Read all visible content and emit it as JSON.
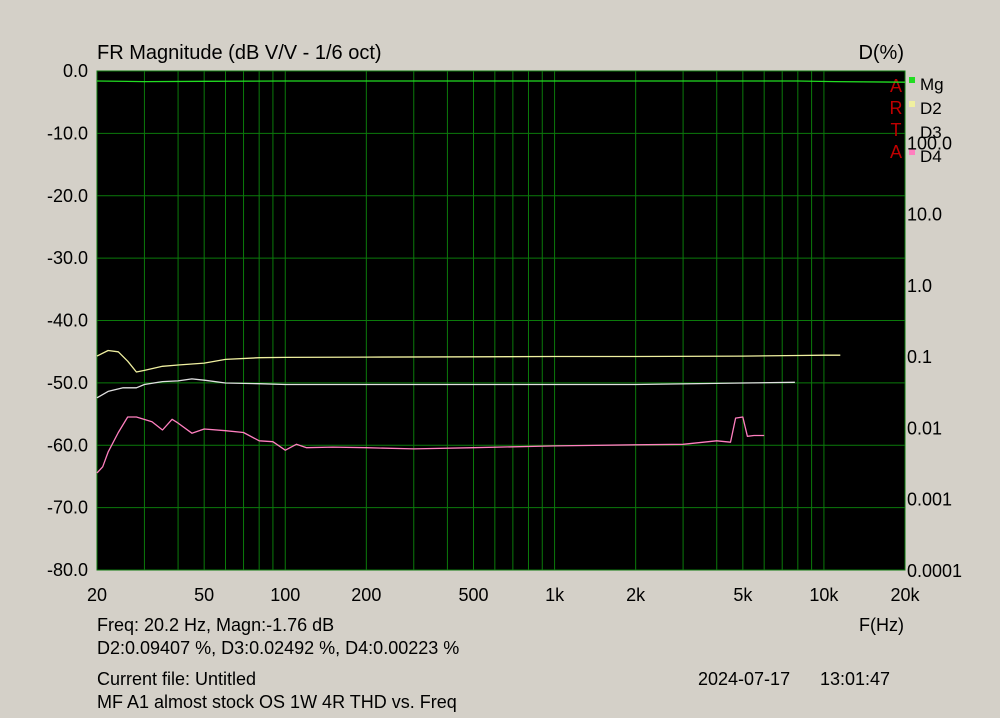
{
  "chart_data": {
    "type": "line",
    "title": "FR Magnitude (dB V/V - 1/6 oct)",
    "right_axis_title": "D(%)",
    "xlabel": "F(Hz)",
    "x_scale": "log",
    "xlim": [
      20,
      20000
    ],
    "ylim_left": [
      -80,
      0
    ],
    "ylim_right_percent": [
      0.0001,
      1000
    ],
    "y_right_scale": "log",
    "grid": true,
    "legend_placement": "top-right",
    "x_ticks": [
      {
        "value": 20,
        "label": "20"
      },
      {
        "value": 50,
        "label": "50"
      },
      {
        "value": 100,
        "label": "100"
      },
      {
        "value": 200,
        "label": "200"
      },
      {
        "value": 500,
        "label": "500"
      },
      {
        "value": 1000,
        "label": "1k"
      },
      {
        "value": 2000,
        "label": "2k"
      },
      {
        "value": 5000,
        "label": "5k"
      },
      {
        "value": 10000,
        "label": "10k"
      },
      {
        "value": 20000,
        "label": "20k"
      }
    ],
    "y_left_ticks": [
      {
        "value": 0,
        "label": "0.0"
      },
      {
        "value": -10,
        "label": "-10.0"
      },
      {
        "value": -20,
        "label": "-20.0"
      },
      {
        "value": -30,
        "label": "-30.0"
      },
      {
        "value": -40,
        "label": "-40.0"
      },
      {
        "value": -50,
        "label": "-50.0"
      },
      {
        "value": -60,
        "label": "-60.0"
      },
      {
        "value": -70,
        "label": "-70.0"
      },
      {
        "value": -80,
        "label": "-80.0"
      }
    ],
    "y_right_ticks": [
      {
        "value": 100,
        "label": "100.0"
      },
      {
        "value": 10,
        "label": "10.0"
      },
      {
        "value": 1,
        "label": "1.0"
      },
      {
        "value": 0.1,
        "label": "0.1"
      },
      {
        "value": 0.01,
        "label": "0.01"
      },
      {
        "value": 0.001,
        "label": "0.001"
      },
      {
        "value": 0.0001,
        "label": "0.0001"
      }
    ],
    "watermark": [
      "A",
      "R",
      "T",
      "A"
    ],
    "series": [
      {
        "name": "Mg",
        "color": "#22dd22",
        "x": [
          20,
          30,
          50,
          100,
          500,
          1000,
          5000,
          8000,
          11000,
          20000
        ],
        "y": [
          -1.6,
          -1.7,
          -1.65,
          -1.6,
          -1.6,
          -1.6,
          -1.6,
          -1.6,
          -1.7,
          -1.8
        ]
      },
      {
        "name": "D2",
        "color": "#f0f0a0",
        "x": [
          20,
          22,
          24,
          26,
          28,
          30,
          35,
          40,
          50,
          60,
          80,
          100,
          200,
          500,
          1000,
          2000,
          5000,
          8000,
          10000,
          11500
        ],
        "y_percent": [
          0.1,
          0.12,
          0.115,
          0.085,
          0.06,
          0.063,
          0.072,
          0.075,
          0.08,
          0.09,
          0.095,
          0.096,
          0.097,
          0.098,
          0.099,
          0.099,
          0.1,
          0.102,
          0.103,
          0.103
        ]
      },
      {
        "name": "D3",
        "color": "#e0e0e0",
        "x": [
          20,
          22,
          25,
          28,
          30,
          35,
          40,
          45,
          50,
          60,
          80,
          100,
          200,
          500,
          1000,
          2000,
          5000,
          7800
        ],
        "y_percent": [
          0.026,
          0.032,
          0.036,
          0.036,
          0.04,
          0.044,
          0.045,
          0.048,
          0.046,
          0.042,
          0.041,
          0.04,
          0.04,
          0.04,
          0.04,
          0.04,
          0.042,
          0.043
        ]
      },
      {
        "name": "D4",
        "color": "#ff7fbf",
        "x": [
          20,
          21,
          22,
          24,
          26,
          28,
          32,
          35,
          38,
          40,
          45,
          50,
          60,
          70,
          80,
          90,
          100,
          110,
          120,
          150,
          200,
          300,
          500,
          1000,
          2000,
          3000,
          4000,
          4500,
          4700,
          5000,
          5200,
          5500,
          6000
        ],
        "y_percent": [
          0.0023,
          0.0028,
          0.0045,
          0.0085,
          0.014,
          0.014,
          0.012,
          0.0092,
          0.013,
          0.0115,
          0.0083,
          0.0095,
          0.009,
          0.0085,
          0.0065,
          0.0063,
          0.0048,
          0.0058,
          0.0052,
          0.0053,
          0.0052,
          0.005,
          0.0052,
          0.0055,
          0.0057,
          0.0058,
          0.0065,
          0.0062,
          0.0135,
          0.014,
          0.0075,
          0.0077,
          0.0077
        ]
      }
    ]
  },
  "readout": {
    "freq_line": "Freq: 20.2 Hz, Magn:-1.76 dB",
    "dist_line": "D2:0.09407 %, D3:0.02492 %, D4:0.00223 %",
    "current_file": "Current file: Untitled",
    "description": "MF A1 almost stock OS 1W 4R THD vs. Freq",
    "date": "2024-07-17",
    "time": "13:01:47"
  }
}
